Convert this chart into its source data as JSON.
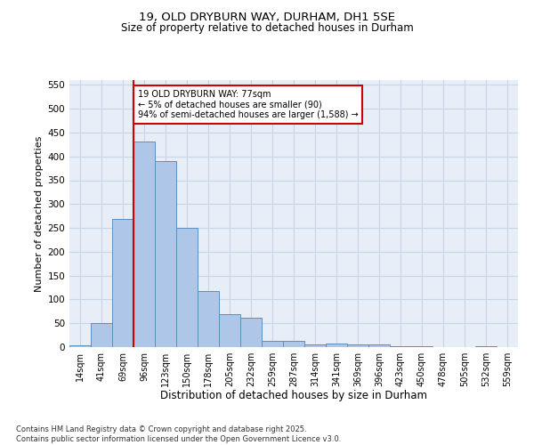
{
  "title1": "19, OLD DRYBURN WAY, DURHAM, DH1 5SE",
  "title2": "Size of property relative to detached houses in Durham",
  "xlabel": "Distribution of detached houses by size in Durham",
  "ylabel": "Number of detached properties",
  "bar_labels": [
    "14sqm",
    "41sqm",
    "69sqm",
    "96sqm",
    "123sqm",
    "150sqm",
    "178sqm",
    "205sqm",
    "232sqm",
    "259sqm",
    "287sqm",
    "314sqm",
    "341sqm",
    "369sqm",
    "396sqm",
    "423sqm",
    "450sqm",
    "478sqm",
    "505sqm",
    "532sqm",
    "559sqm"
  ],
  "bar_values": [
    3,
    50,
    268,
    432,
    390,
    250,
    117,
    70,
    62,
    14,
    14,
    6,
    8,
    5,
    5,
    1,
    1,
    0,
    0,
    1,
    0
  ],
  "bar_color": "#aec6e8",
  "bar_edge_color": "#5a8fc2",
  "vline_x": 2,
  "vline_color": "#cc0000",
  "annotation_text": "19 OLD DRYBURN WAY: 77sqm\n← 5% of detached houses are smaller (90)\n94% of semi-detached houses are larger (1,588) →",
  "annotation_box_color": "#ffffff",
  "annotation_box_edge": "#cc0000",
  "ylim": [
    0,
    560
  ],
  "yticks": [
    0,
    50,
    100,
    150,
    200,
    250,
    300,
    350,
    400,
    450,
    500,
    550
  ],
  "footer_text": "Contains HM Land Registry data © Crown copyright and database right 2025.\nContains public sector information licensed under the Open Government Licence v3.0.",
  "bg_color": "#e8eef8",
  "grid_color": "#c8d4e8"
}
